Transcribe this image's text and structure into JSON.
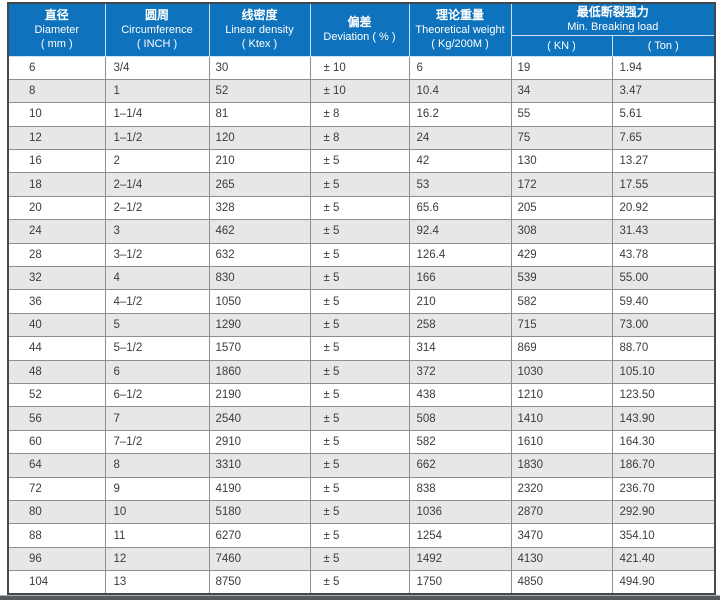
{
  "colors": {
    "header_bg": "#0e72bd",
    "header_text": "#ffffff",
    "row_bg": "#ffffff",
    "row_alt_bg": "#e7e7e7",
    "grid_line": "#8f8f8f",
    "outer_border": "#46494c",
    "bottom_bar": "#56595d",
    "body_text": "#3c3c3c"
  },
  "chart_data": {
    "type": "table",
    "header": {
      "simple_columns": [
        {
          "zh": "直径",
          "en": "Diameter",
          "unit": "( mm )"
        },
        {
          "zh": "圆周",
          "en": "Circumference",
          "unit": "( INCH )"
        },
        {
          "zh": "线密度",
          "en": "Linear density",
          "unit": "( Ktex )"
        },
        {
          "zh": "偏差",
          "en": "Deviation ( % )",
          "unit": ""
        },
        {
          "zh": "理论重量",
          "en": "Theoretical weight",
          "unit": "( Kg/200M )"
        }
      ],
      "group_column": {
        "zh": "最低断裂强力",
        "en": "Min. Breaking load",
        "sub_columns": [
          "( KN )",
          "( Ton )"
        ]
      }
    },
    "rows": [
      [
        "6",
        "3/4",
        "30",
        "± 10",
        "6",
        "19",
        "1.94"
      ],
      [
        "8",
        "1",
        "52",
        "± 10",
        "10.4",
        "34",
        "3.47"
      ],
      [
        "10",
        "1–1/4",
        "81",
        "± 8",
        "16.2",
        "55",
        "5.61"
      ],
      [
        "12",
        "1–1/2",
        "120",
        "± 8",
        "24",
        "75",
        "7.65"
      ],
      [
        "16",
        "2",
        "210",
        "± 5",
        "42",
        "130",
        "13.27"
      ],
      [
        "18",
        "2–1/4",
        "265",
        "± 5",
        "53",
        "172",
        "17.55"
      ],
      [
        "20",
        "2–1/2",
        "328",
        "± 5",
        "65.6",
        "205",
        "20.92"
      ],
      [
        "24",
        "3",
        "462",
        "± 5",
        "92.4",
        "308",
        "31.43"
      ],
      [
        "28",
        "3–1/2",
        "632",
        "± 5",
        "126.4",
        "429",
        "43.78"
      ],
      [
        "32",
        "4",
        "830",
        "± 5",
        "166",
        "539",
        "55.00"
      ],
      [
        "36",
        "4–1/2",
        "1050",
        "± 5",
        "210",
        "582",
        "59.40"
      ],
      [
        "40",
        "5",
        "1290",
        "± 5",
        "258",
        "715",
        "73.00"
      ],
      [
        "44",
        "5–1/2",
        "1570",
        "± 5",
        "314",
        "869",
        "88.70"
      ],
      [
        "48",
        "6",
        "1860",
        "± 5",
        "372",
        "1030",
        "105.10"
      ],
      [
        "52",
        "6–1/2",
        "2190",
        "± 5",
        "438",
        "1210",
        "123.50"
      ],
      [
        "56",
        "7",
        "2540",
        "± 5",
        "508",
        "1410",
        "143.90"
      ],
      [
        "60",
        "7–1/2",
        "2910",
        "± 5",
        "582",
        "1610",
        "164.30"
      ],
      [
        "64",
        "8",
        "3310",
        "± 5",
        "662",
        "1830",
        "186.70"
      ],
      [
        "72",
        "9",
        "4190",
        "± 5",
        "838",
        "2320",
        "236.70"
      ],
      [
        "80",
        "10",
        "5180",
        "± 5",
        "1036",
        "2870",
        "292.90"
      ],
      [
        "88",
        "11",
        "6270",
        "± 5",
        "1254",
        "3470",
        "354.10"
      ],
      [
        "96",
        "12",
        "7460",
        "± 5",
        "1492",
        "4130",
        "421.40"
      ],
      [
        "104",
        "13",
        "8750",
        "± 5",
        "1750",
        "4850",
        "494.90"
      ]
    ]
  }
}
